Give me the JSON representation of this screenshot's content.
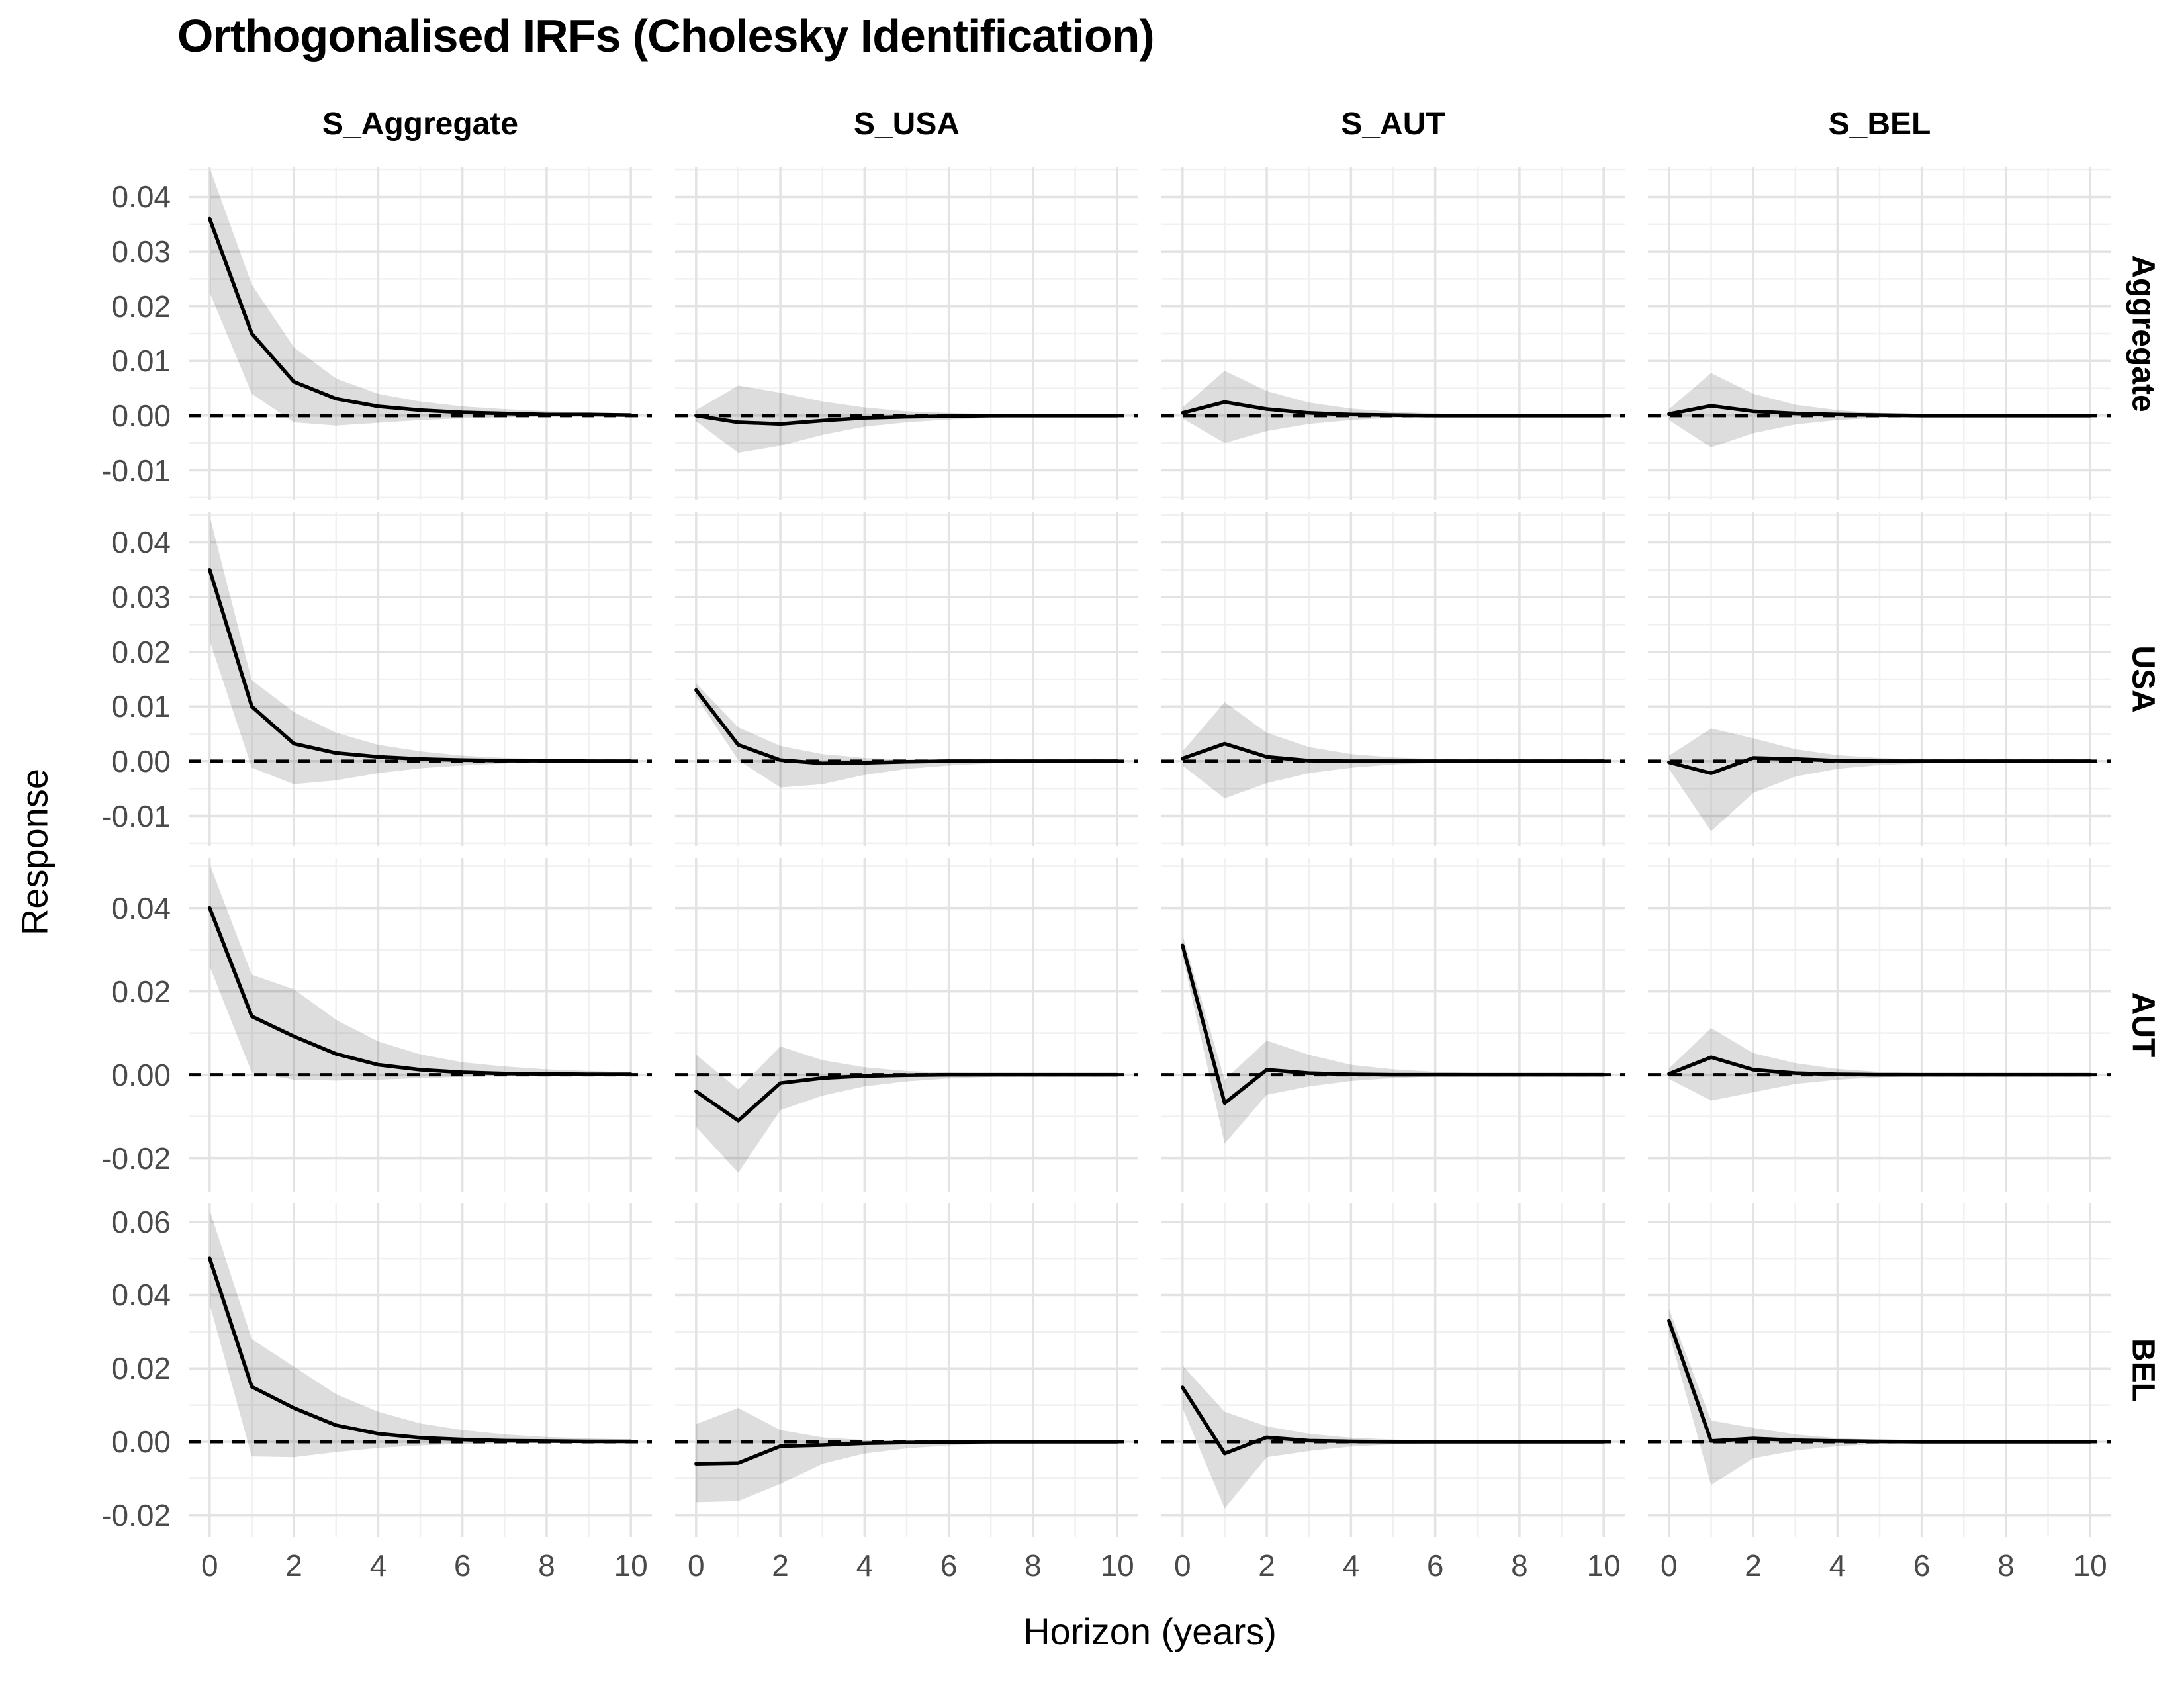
{
  "title": "Orthogonalised IRFs (Cholesky Identification)",
  "axes": {
    "x_title": "Horizon (years)",
    "y_title": "Response"
  },
  "colors": {
    "line": "#000000",
    "zero_line": "#000000",
    "band": "rgba(0,0,0,0.135)",
    "grid_major": "#e3e3e3",
    "grid_minor": "#f0f0f0",
    "tick_text": "#4a4a4a",
    "text": "#000000",
    "background": "#ffffff"
  },
  "chart_data": {
    "type": "line",
    "title": "Orthogonalised IRFs (Cholesky Identification)",
    "xlabel": "Horizon (years)",
    "ylabel": "Response",
    "legend": "none",
    "grid": "on",
    "zero_line": "dashed",
    "x": [
      0,
      1,
      2,
      3,
      4,
      5,
      6,
      7,
      8,
      9,
      10
    ],
    "xticks": [
      0,
      2,
      4,
      6,
      8,
      10
    ],
    "xtick_labels": [
      "0",
      "2",
      "4",
      "6",
      "8",
      "10"
    ],
    "xlim": [
      -0.5,
      10.5
    ],
    "x_minor": [
      1,
      3,
      5,
      7,
      9
    ],
    "col_facets": [
      "S_Aggregate",
      "S_USA",
      "S_AUT",
      "S_BEL"
    ],
    "row_facets": [
      {
        "label": "Aggregate",
        "ylim": [
          -0.0155,
          0.0455
        ],
        "minor_step": 0.005,
        "yticks": [
          0.04,
          0.03,
          0.02,
          0.01,
          0.0,
          -0.01
        ],
        "ytick_labels": [
          "0.04",
          "0.03",
          "0.02",
          "0.01",
          "0.00",
          "-0.01"
        ]
      },
      {
        "label": "USA",
        "ylim": [
          -0.0155,
          0.0455
        ],
        "minor_step": 0.005,
        "yticks": [
          0.04,
          0.03,
          0.02,
          0.01,
          0.0,
          -0.01
        ],
        "ytick_labels": [
          "0.04",
          "0.03",
          "0.02",
          "0.01",
          "0.00",
          "-0.01"
        ]
      },
      {
        "label": "AUT",
        "ylim": [
          -0.028,
          0.052
        ],
        "minor_step": 0.01,
        "yticks": [
          0.04,
          0.02,
          0.0,
          -0.02
        ],
        "ytick_labels": [
          "0.04",
          "0.02",
          "0.00",
          "-0.02"
        ]
      },
      {
        "label": "BEL",
        "ylim": [
          -0.026,
          0.065
        ],
        "minor_step": 0.01,
        "yticks": [
          0.06,
          0.04,
          0.02,
          0.0,
          -0.02
        ],
        "ytick_labels": [
          "0.06",
          "0.04",
          "0.02",
          "0.00",
          "-0.02"
        ]
      }
    ],
    "panels": [
      {
        "row": "Aggregate",
        "col": "S_Aggregate",
        "irf": [
          0.036,
          0.015,
          0.0062,
          0.0031,
          0.0017,
          0.001,
          0.0006,
          0.0004,
          0.0002,
          0.0002,
          0.0001
        ],
        "upper": [
          0.0453,
          0.024,
          0.0125,
          0.0068,
          0.004,
          0.0026,
          0.0017,
          0.0012,
          0.0008,
          0.0006,
          0.0004
        ],
        "lower": [
          0.0225,
          0.004,
          -0.0012,
          -0.0018,
          -0.0013,
          -0.0008,
          -0.0005,
          -0.0003,
          -0.0002,
          -0.0002,
          -0.0001
        ]
      },
      {
        "row": "Aggregate",
        "col": "S_USA",
        "irf": [
          0.0,
          -0.0012,
          -0.0015,
          -0.0009,
          -0.0004,
          -0.0002,
          -0.0001,
          0.0,
          0.0,
          0.0,
          0.0
        ],
        "upper": [
          0.001,
          0.0055,
          0.0042,
          0.0026,
          0.0015,
          0.0008,
          0.0005,
          0.0003,
          0.0002,
          0.0001,
          0.0001
        ],
        "lower": [
          -0.001,
          -0.0068,
          -0.0055,
          -0.0035,
          -0.002,
          -0.0012,
          -0.0007,
          -0.0004,
          -0.0002,
          -0.0002,
          -0.0001
        ]
      },
      {
        "row": "Aggregate",
        "col": "S_AUT",
        "irf": [
          0.0005,
          0.0025,
          0.0012,
          0.0005,
          0.0002,
          0.0001,
          0.0,
          0.0,
          0.0,
          0.0,
          0.0
        ],
        "upper": [
          0.0015,
          0.0082,
          0.0045,
          0.0024,
          0.0013,
          0.0007,
          0.0004,
          0.0002,
          0.0001,
          0.0001,
          0.0
        ],
        "lower": [
          -0.0005,
          -0.005,
          -0.0028,
          -0.0015,
          -0.0008,
          -0.0004,
          -0.0002,
          -0.0001,
          -0.0001,
          0.0,
          0.0
        ]
      },
      {
        "row": "Aggregate",
        "col": "S_BEL",
        "irf": [
          0.0003,
          0.0018,
          0.0008,
          0.0004,
          0.0002,
          0.0001,
          0.0,
          0.0,
          0.0,
          0.0,
          0.0
        ],
        "upper": [
          0.0012,
          0.0078,
          0.004,
          0.002,
          0.001,
          0.0005,
          0.0003,
          0.0002,
          0.0001,
          0.0001,
          0.0
        ],
        "lower": [
          -0.0008,
          -0.0058,
          -0.0032,
          -0.0016,
          -0.0008,
          -0.0004,
          -0.0002,
          -0.0001,
          -0.0001,
          0.0,
          0.0
        ]
      },
      {
        "row": "USA",
        "col": "S_Aggregate",
        "irf": [
          0.035,
          0.01,
          0.0032,
          0.0015,
          0.0008,
          0.0004,
          0.0002,
          0.0001,
          0.0001,
          0.0,
          0.0
        ],
        "upper": [
          0.0448,
          0.0148,
          0.009,
          0.0052,
          0.003,
          0.0018,
          0.001,
          0.0006,
          0.0004,
          0.0002,
          0.0002
        ],
        "lower": [
          0.022,
          -0.0012,
          -0.0042,
          -0.0035,
          -0.0022,
          -0.0013,
          -0.0008,
          -0.0004,
          -0.0002,
          -0.0001,
          -0.0001
        ]
      },
      {
        "row": "USA",
        "col": "S_USA",
        "irf": [
          0.013,
          0.003,
          0.0002,
          -0.0004,
          -0.0003,
          -0.0001,
          0.0,
          0.0,
          0.0,
          0.0,
          0.0
        ],
        "upper": [
          0.0142,
          0.0062,
          0.0028,
          0.0013,
          0.0006,
          0.0003,
          0.0002,
          0.0001,
          0.0,
          0.0,
          0.0
        ],
        "lower": [
          0.0118,
          0.0002,
          -0.0048,
          -0.0042,
          -0.0025,
          -0.0014,
          -0.0008,
          -0.0004,
          -0.0002,
          -0.0001,
          0.0
        ]
      },
      {
        "row": "USA",
        "col": "S_AUT",
        "irf": [
          0.0005,
          0.0032,
          0.0008,
          0.0001,
          0.0,
          0.0,
          0.0,
          0.0,
          0.0,
          0.0,
          0.0
        ],
        "upper": [
          0.0018,
          0.0108,
          0.0052,
          0.0026,
          0.0013,
          0.0007,
          0.0004,
          0.0002,
          0.0001,
          0.0,
          0.0
        ],
        "lower": [
          -0.0008,
          -0.0068,
          -0.004,
          -0.0022,
          -0.0012,
          -0.0006,
          -0.0003,
          -0.0002,
          -0.0001,
          0.0,
          0.0
        ]
      },
      {
        "row": "USA",
        "col": "S_BEL",
        "irf": [
          -0.0002,
          -0.0022,
          0.0006,
          0.0004,
          0.0001,
          0.0,
          0.0,
          0.0,
          0.0,
          0.0,
          0.0
        ],
        "upper": [
          0.001,
          0.006,
          0.0042,
          0.0022,
          0.0011,
          0.0006,
          0.0003,
          0.0002,
          0.0001,
          0.0,
          0.0
        ],
        "lower": [
          -0.0014,
          -0.0128,
          -0.0058,
          -0.0028,
          -0.0014,
          -0.0007,
          -0.0004,
          -0.0002,
          -0.0001,
          0.0,
          0.0
        ]
      },
      {
        "row": "AUT",
        "col": "S_Aggregate",
        "irf": [
          0.04,
          0.014,
          0.0092,
          0.005,
          0.0024,
          0.0012,
          0.0006,
          0.0003,
          0.0002,
          0.0001,
          0.0001
        ],
        "upper": [
          0.0505,
          0.024,
          0.0205,
          0.0132,
          0.008,
          0.0049,
          0.003,
          0.002,
          0.0013,
          0.0009,
          0.0006
        ],
        "lower": [
          0.026,
          0.0005,
          -0.0012,
          -0.0014,
          -0.0012,
          -0.0008,
          -0.0005,
          -0.0003,
          -0.0002,
          -0.0001,
          -0.0001
        ]
      },
      {
        "row": "AUT",
        "col": "S_USA",
        "irf": [
          -0.004,
          -0.011,
          -0.002,
          -0.0008,
          -0.0003,
          -0.0001,
          0.0,
          0.0,
          0.0,
          0.0,
          0.0
        ],
        "upper": [
          0.0048,
          -0.0035,
          0.0068,
          0.0035,
          0.0018,
          0.0009,
          0.0005,
          0.0003,
          0.0002,
          0.0001,
          0.0
        ],
        "lower": [
          -0.0125,
          -0.0235,
          -0.0085,
          -0.005,
          -0.0028,
          -0.0016,
          -0.0009,
          -0.0005,
          -0.0003,
          -0.0002,
          -0.0001
        ]
      },
      {
        "row": "AUT",
        "col": "S_AUT",
        "irf": [
          0.031,
          -0.0068,
          0.0012,
          0.0004,
          0.0001,
          0.0,
          0.0,
          0.0,
          0.0,
          0.0,
          0.0
        ],
        "upper": [
          0.0335,
          -0.0012,
          0.0082,
          0.0048,
          0.0024,
          0.0013,
          0.0007,
          0.0004,
          0.0002,
          0.0001,
          0.0001
        ],
        "lower": [
          0.0285,
          -0.0165,
          -0.0048,
          -0.0028,
          -0.0015,
          -0.0008,
          -0.0004,
          -0.0002,
          -0.0001,
          -0.0001,
          0.0
        ]
      },
      {
        "row": "AUT",
        "col": "S_BEL",
        "irf": [
          0.0002,
          0.0042,
          0.0012,
          0.0004,
          0.0001,
          0.0,
          0.0,
          0.0,
          0.0,
          0.0,
          0.0
        ],
        "upper": [
          0.0015,
          0.0112,
          0.0052,
          0.0028,
          0.0014,
          0.0007,
          0.0004,
          0.0002,
          0.0001,
          0.0001,
          0.0
        ],
        "lower": [
          -0.001,
          -0.0062,
          -0.0042,
          -0.0022,
          -0.0012,
          -0.0006,
          -0.0003,
          -0.0002,
          -0.0001,
          0.0,
          0.0
        ]
      },
      {
        "row": "BEL",
        "col": "S_Aggregate",
        "irf": [
          0.05,
          0.015,
          0.0092,
          0.0045,
          0.0022,
          0.0011,
          0.0006,
          0.0003,
          0.0002,
          0.0001,
          0.0001
        ],
        "upper": [
          0.0632,
          0.028,
          0.0205,
          0.013,
          0.0082,
          0.005,
          0.0032,
          0.002,
          0.0013,
          0.0009,
          0.0006
        ],
        "lower": [
          0.0375,
          -0.004,
          -0.0042,
          -0.0028,
          -0.0017,
          -0.001,
          -0.0006,
          -0.0004,
          -0.0002,
          -0.0001,
          -0.0001
        ]
      },
      {
        "row": "BEL",
        "col": "S_USA",
        "irf": [
          -0.006,
          -0.0058,
          -0.0012,
          -0.0009,
          -0.0004,
          -0.0002,
          -0.0001,
          0.0,
          0.0,
          0.0,
          0.0
        ],
        "upper": [
          0.0048,
          0.0092,
          0.0032,
          0.0012,
          0.0005,
          0.0003,
          0.0002,
          0.0001,
          0.0,
          0.0,
          0.0
        ],
        "lower": [
          -0.0165,
          -0.0162,
          -0.0115,
          -0.006,
          -0.0032,
          -0.0018,
          -0.001,
          -0.0005,
          -0.0003,
          -0.0002,
          -0.0001
        ]
      },
      {
        "row": "BEL",
        "col": "S_AUT",
        "irf": [
          0.0148,
          -0.0032,
          0.0012,
          0.0003,
          0.0001,
          0.0,
          0.0,
          0.0,
          0.0,
          0.0,
          0.0
        ],
        "upper": [
          0.0208,
          0.0082,
          0.0042,
          0.0022,
          0.0011,
          0.0006,
          0.0003,
          0.0002,
          0.0001,
          0.0,
          0.0
        ],
        "lower": [
          0.0092,
          -0.0182,
          -0.0042,
          -0.0025,
          -0.0013,
          -0.0007,
          -0.0004,
          -0.0002,
          -0.0001,
          0.0,
          0.0
        ]
      },
      {
        "row": "BEL",
        "col": "S_BEL",
        "irf": [
          0.033,
          0.0002,
          0.0009,
          0.0004,
          0.0002,
          0.0001,
          0.0,
          0.0,
          0.0,
          0.0,
          0.0
        ],
        "upper": [
          0.0362,
          0.0058,
          0.0038,
          0.002,
          0.001,
          0.0005,
          0.0003,
          0.0002,
          0.0001,
          0.0,
          0.0
        ],
        "lower": [
          0.0298,
          -0.0118,
          -0.0045,
          -0.0024,
          -0.0012,
          -0.0006,
          -0.0003,
          -0.0002,
          -0.0001,
          0.0,
          0.0
        ]
      }
    ]
  }
}
